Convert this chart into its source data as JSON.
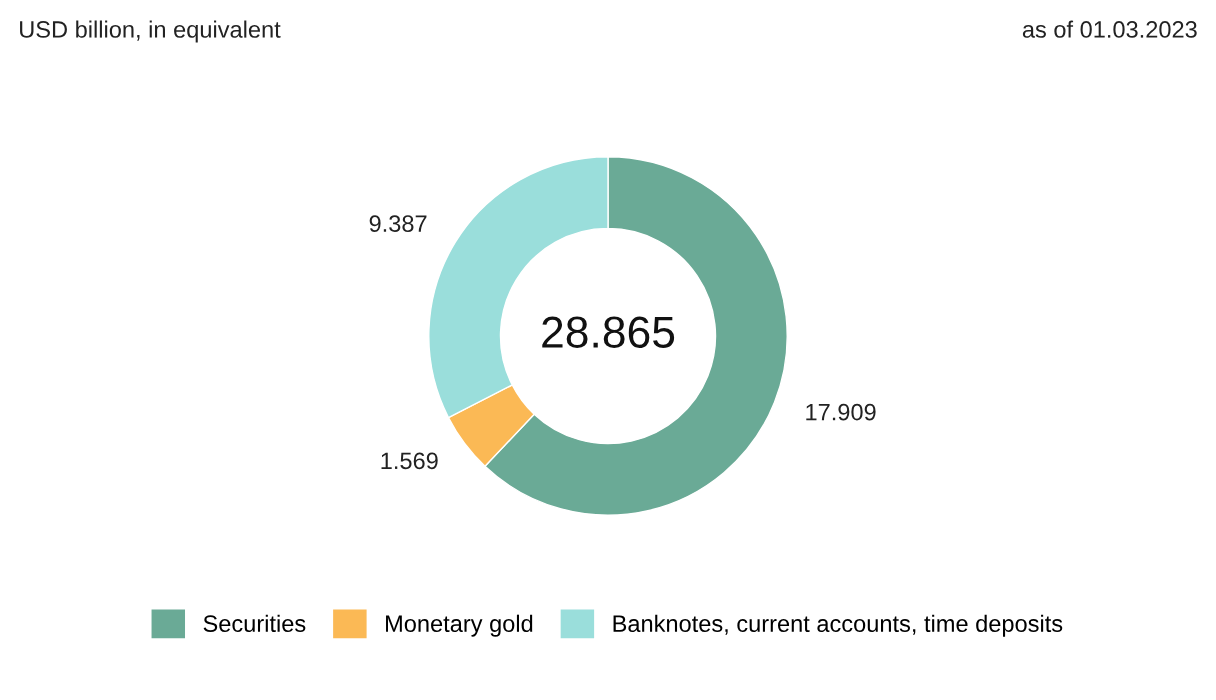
{
  "chart_data": {
    "type": "donut",
    "title": "USD billion, in equivalent",
    "subtitle": "as of 01.03.2023",
    "categories": [
      "Securities",
      "Monetary gold",
      "Banknotes, current accounts, time deposits"
    ],
    "values": [
      17.909,
      1.569,
      9.387
    ],
    "colors": [
      "#6aaa96",
      "#fbb955",
      "#9adedb"
    ],
    "data_labels": true,
    "annotations": [
      "28.865"
    ],
    "legend": "bottom"
  }
}
